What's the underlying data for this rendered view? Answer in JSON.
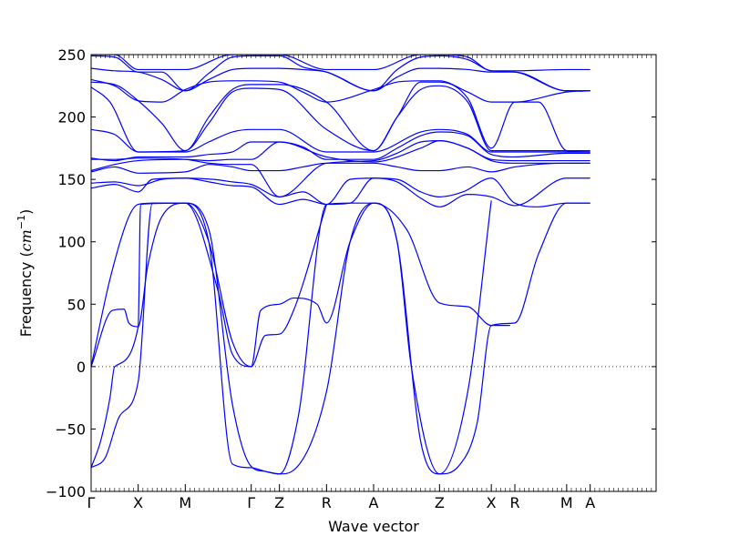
{
  "chart_data": {
    "type": "line",
    "title": "",
    "xlabel": "Wave vector",
    "ylabel": {
      "prefix": "Frequency (",
      "unit_base": "cm",
      "unit_exponent": "−1",
      "suffix": ")"
    },
    "ylim": [
      -100,
      250
    ],
    "yticks": [
      -100,
      -50,
      0,
      50,
      100,
      150,
      200,
      250
    ],
    "xlim": [
      0,
      12
    ],
    "high_symmetry_points": [
      {
        "label": "Γ",
        "x": 0
      },
      {
        "label": "X",
        "x": 1
      },
      {
        "label": "M",
        "x": 2
      },
      {
        "label": "Γ",
        "x": 3.4
      },
      {
        "label": "Z",
        "x": 4
      },
      {
        "label": "R",
        "x": 5
      },
      {
        "label": "A",
        "x": 6
      },
      {
        "label": "Z",
        "x": 7.4
      },
      {
        "label": "X",
        "x": 8.5
      },
      {
        "label": "R",
        "x": 9
      },
      {
        "label": "M",
        "x": 10.1
      },
      {
        "label": "A",
        "x": 10.6
      }
    ],
    "zero_line": {
      "y": 0,
      "style": "dotted"
    },
    "line_color": "#0000ff",
    "grid": false,
    "legend": "none",
    "series": [
      {
        "x": [
          0,
          0.3,
          0.6,
          1,
          1.3,
          2,
          2.5,
          3,
          3.4,
          3.7,
          4,
          4.3,
          5,
          5.5,
          6,
          6.5,
          7,
          7.4,
          7.8,
          8.2,
          8.5,
          9,
          9.5,
          10.1,
          10.6
        ],
        "y": [
          -81,
          -73,
          -40,
          -12,
          131,
          131,
          100,
          -78,
          -81,
          -84,
          -86,
          -83,
          -20,
          100,
          131,
          100,
          -60,
          -86,
          -80,
          -45,
          33,
          35,
          90,
          131,
          131
        ]
      },
      {
        "x": [
          0,
          0.2,
          0.4,
          0.5,
          1,
          1.05,
          2,
          2.5,
          3,
          3.4,
          3.7,
          4,
          4.4,
          5,
          5.5,
          6,
          6.5,
          6.8,
          7.4,
          8,
          8.5
        ],
        "y": [
          -81,
          -60,
          -25,
          0,
          32,
          130,
          131,
          110,
          -30,
          -80,
          -84,
          -86,
          -40,
          130,
          131,
          131,
          100,
          0,
          -86,
          -20,
          133
        ]
      },
      {
        "x": [
          0,
          0.45,
          0.7,
          0.8,
          1,
          1.2,
          1.5,
          2,
          2.5,
          3,
          3.4,
          3.6,
          4,
          4.3,
          4.8,
          5,
          5.5,
          6,
          6.7,
          7.4,
          8,
          8.5,
          8.9
        ],
        "y": [
          0,
          45,
          46,
          35,
          32,
          80,
          120,
          131,
          100,
          20,
          0,
          45,
          50,
          55,
          50,
          35,
          100,
          131,
          110,
          51,
          48,
          33,
          33
        ]
      },
      {
        "x": [
          0,
          0.4,
          0.8,
          1,
          1.3,
          2,
          2.7,
          3,
          3.4,
          3.7,
          4,
          4.3,
          5
        ],
        "y": [
          0,
          70,
          120,
          130,
          131,
          131,
          60,
          10,
          0,
          25,
          26,
          45,
          130
        ]
      },
      {
        "x": [
          0,
          0.5,
          1,
          1.3,
          2,
          2.6,
          3,
          3.4,
          4,
          4.5,
          5,
          5.5,
          6,
          6.5,
          7,
          7.4,
          7.9,
          8.5,
          9,
          9.5,
          10.1,
          10.6
        ],
        "y": [
          143,
          146,
          140,
          150,
          151,
          150,
          148,
          146,
          136,
          140,
          130,
          131,
          151,
          150,
          140,
          136,
          140,
          151,
          131,
          128,
          131,
          131
        ]
      },
      {
        "x": [
          0,
          0.5,
          1,
          1.5,
          2,
          2.5,
          3,
          3.4,
          4,
          4.5,
          5,
          5.5,
          6,
          6.5,
          7,
          7.4,
          8,
          8.5,
          9,
          10.1,
          10.6
        ],
        "y": [
          147,
          148,
          145,
          150,
          151,
          148,
          145,
          144,
          130,
          134,
          130,
          150,
          151,
          148,
          135,
          128,
          138,
          136,
          129,
          151,
          151
        ]
      },
      {
        "x": [
          0,
          0.5,
          1,
          2,
          2.5,
          3,
          3.4,
          4,
          4.5,
          5,
          6,
          6.5,
          7,
          7.4,
          8,
          8.5,
          9,
          10.1,
          10.6
        ],
        "y": [
          156,
          160,
          155,
          156,
          162,
          160,
          157,
          157,
          160,
          163,
          163,
          160,
          157,
          157,
          160,
          156,
          160,
          163,
          163
        ]
      },
      {
        "x": [
          0,
          0.5,
          1,
          2,
          2.5,
          3,
          3.4,
          4,
          5,
          6,
          7,
          7.4,
          8,
          8.5,
          9,
          10.1,
          10.6
        ],
        "y": [
          157,
          162,
          165,
          166,
          165,
          166,
          166,
          180,
          168,
          164,
          175,
          181,
          175,
          165,
          163,
          163,
          163
        ]
      },
      {
        "x": [
          0,
          0.5,
          1,
          2,
          2.5,
          3,
          3.4,
          4,
          5,
          6,
          6.5,
          7,
          7.4,
          8,
          8.5,
          9,
          10.1,
          10.6
        ],
        "y": [
          166,
          166,
          167,
          166,
          163,
          162,
          162,
          136,
          163,
          165,
          171,
          180,
          181,
          175,
          166,
          165,
          165,
          165
        ]
      },
      {
        "x": [
          0,
          0.5,
          1,
          1.5,
          2,
          2.5,
          3,
          3.4,
          4,
          4.5,
          5,
          6,
          6.5,
          7,
          7.4,
          8,
          8.5,
          9,
          10.1,
          10.6
        ],
        "y": [
          167,
          165,
          168,
          168,
          168,
          170,
          172,
          180,
          180,
          176,
          166,
          166,
          175,
          185,
          188,
          185,
          170,
          168,
          171,
          171
        ]
      },
      {
        "x": [
          0,
          0.5,
          1,
          2,
          2.5,
          3,
          3.4,
          4,
          5,
          6,
          7,
          7.4,
          8,
          8.5,
          9,
          10.1,
          10.6
        ],
        "y": [
          190,
          186,
          172,
          172,
          180,
          188,
          190,
          190,
          172,
          172,
          188,
          190,
          186,
          172,
          172,
          172,
          172
        ]
      },
      {
        "x": [
          0,
          0.4,
          1,
          2,
          2.5,
          3,
          3.4,
          4,
          5,
          6,
          6.5,
          7,
          7.4,
          8,
          8.5,
          9,
          10.1,
          10.6
        ],
        "y": [
          224,
          212,
          172,
          173,
          195,
          220,
          223,
          222,
          190,
          173,
          200,
          222,
          225,
          212,
          173,
          173,
          173,
          173
        ]
      },
      {
        "x": [
          0,
          0.5,
          1,
          1.5,
          2,
          2.5,
          3,
          3.4,
          4,
          5,
          6,
          6.5,
          7,
          7.4,
          8,
          8.5,
          9,
          9.5,
          10.1,
          10.6
        ],
        "y": [
          228,
          226,
          213,
          195,
          173,
          200,
          222,
          226,
          226,
          212,
          173,
          200,
          228,
          228,
          215,
          175,
          212,
          212,
          173,
          172
        ]
      },
      {
        "x": [
          0,
          0.5,
          1,
          1.5,
          2,
          2.5,
          3,
          3.4,
          4,
          4.5,
          5,
          6,
          6.5,
          7,
          7.4,
          8,
          8.5,
          9,
          10.1,
          10.6
        ],
        "y": [
          230,
          225,
          213,
          212,
          222,
          228,
          229,
          229,
          228,
          220,
          212,
          222,
          228,
          229,
          229,
          220,
          212,
          212,
          220,
          221
        ]
      },
      {
        "x": [
          0,
          0.5,
          1,
          1.5,
          2,
          2.5,
          3,
          3.4,
          4,
          4.5,
          5,
          6,
          6.5,
          7,
          7.4,
          8,
          8.5,
          9,
          10.1,
          10.6
        ],
        "y": [
          239,
          237,
          236,
          230,
          221,
          230,
          238,
          239,
          239,
          238,
          236,
          221,
          232,
          239,
          239,
          238,
          236,
          236,
          221,
          221
        ]
      },
      {
        "x": [
          0,
          0.5,
          1,
          1.5,
          2,
          2.5,
          3,
          3.4,
          4,
          4.5,
          5,
          6,
          6.5,
          7,
          7.4,
          8,
          8.5,
          9,
          10.1,
          10.6
        ],
        "y": [
          249,
          248,
          236,
          236,
          221,
          235,
          248,
          249,
          249,
          240,
          236,
          221,
          238,
          248,
          249,
          246,
          237,
          236,
          221,
          221
        ]
      },
      {
        "x": [
          0,
          0.5,
          1,
          2,
          3,
          3.4,
          4,
          5,
          6,
          7,
          7.4,
          8,
          8.5,
          9,
          10.1,
          10.6
        ],
        "y": [
          250,
          250,
          238,
          238,
          250,
          250,
          250,
          238,
          238,
          250,
          250,
          248,
          237,
          237,
          238,
          238
        ]
      }
    ]
  }
}
